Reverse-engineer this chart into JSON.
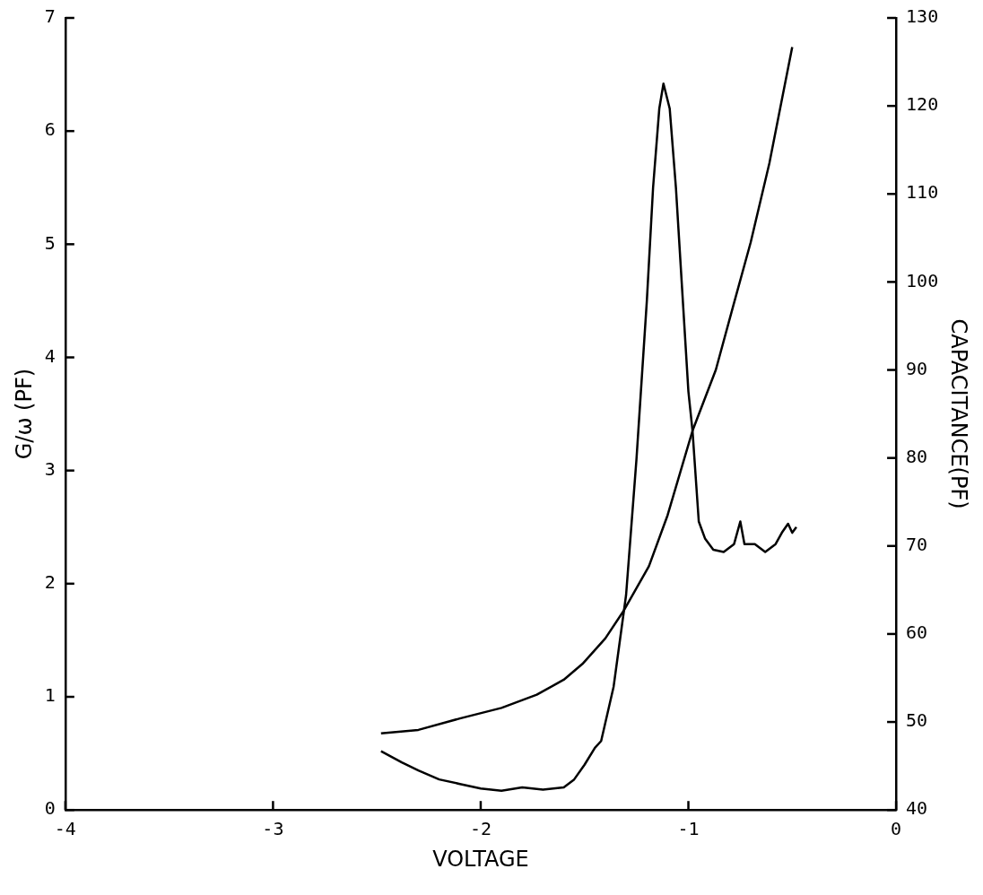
{
  "chart_data": {
    "type": "line",
    "xlabel": "VOLTAGE",
    "ylabel": "G/ω (PF)",
    "y2label": "CAPACITANCE(PF)",
    "xlim": [
      -4,
      0
    ],
    "xticks": [
      -4,
      -3,
      -2,
      -1,
      0
    ],
    "ylim": [
      0,
      7
    ],
    "yticks": [
      0,
      1,
      2,
      3,
      4,
      5,
      6,
      7
    ],
    "y2lim": [
      40,
      130
    ],
    "y2ticks": [
      40,
      50,
      60,
      70,
      80,
      90,
      100,
      110,
      120,
      130
    ],
    "grid": false,
    "legend": false,
    "marker": "none",
    "line_style": "solid",
    "series": [
      {
        "color": "#000000",
        "axis": "y",
        "x": [
          -2.48,
          -2.43,
          -2.38,
          -2.3,
          -2.2,
          -2.1,
          -2.0,
          -1.9,
          -1.8,
          -1.7,
          -1.6,
          -1.55,
          -1.5,
          -1.45,
          -1.42,
          -1.36,
          -1.3,
          -1.25,
          -1.2,
          -1.17,
          -1.14,
          -1.12,
          -1.09,
          -1.06,
          -1.03,
          -1.0,
          -0.98,
          -0.95,
          -0.92,
          -0.88,
          -0.83,
          -0.78,
          -0.75,
          -0.73,
          -0.68,
          -0.63,
          -0.58,
          -0.55,
          -0.52,
          -0.5,
          -0.48
        ],
        "values": [
          0.52,
          0.47,
          0.42,
          0.35,
          0.27,
          0.23,
          0.19,
          0.17,
          0.2,
          0.18,
          0.2,
          0.27,
          0.4,
          0.55,
          0.61,
          1.09,
          1.9,
          3.1,
          4.5,
          5.5,
          6.2,
          6.42,
          6.2,
          5.5,
          4.6,
          3.7,
          3.35,
          2.55,
          2.4,
          2.3,
          2.28,
          2.35,
          2.55,
          2.35,
          2.35,
          2.28,
          2.35,
          2.45,
          2.53,
          2.45,
          2.5
        ]
      },
      {
        "color": "#000000",
        "axis": "y2",
        "x": [
          -2.48,
          -2.3,
          -2.1,
          -1.9,
          -1.73,
          -1.6,
          -1.51,
          -1.4,
          -1.31,
          -1.19,
          -1.1,
          -0.98,
          -0.868,
          -0.785,
          -0.7,
          -0.61,
          -0.55,
          -0.5
        ],
        "values": [
          48.7,
          49.1,
          50.4,
          51.6,
          53.1,
          54.8,
          56.6,
          59.5,
          62.7,
          67.7,
          73.5,
          83.1,
          90.0,
          97.2,
          104.5,
          113.5,
          120.7,
          126.7
        ]
      }
    ]
  }
}
